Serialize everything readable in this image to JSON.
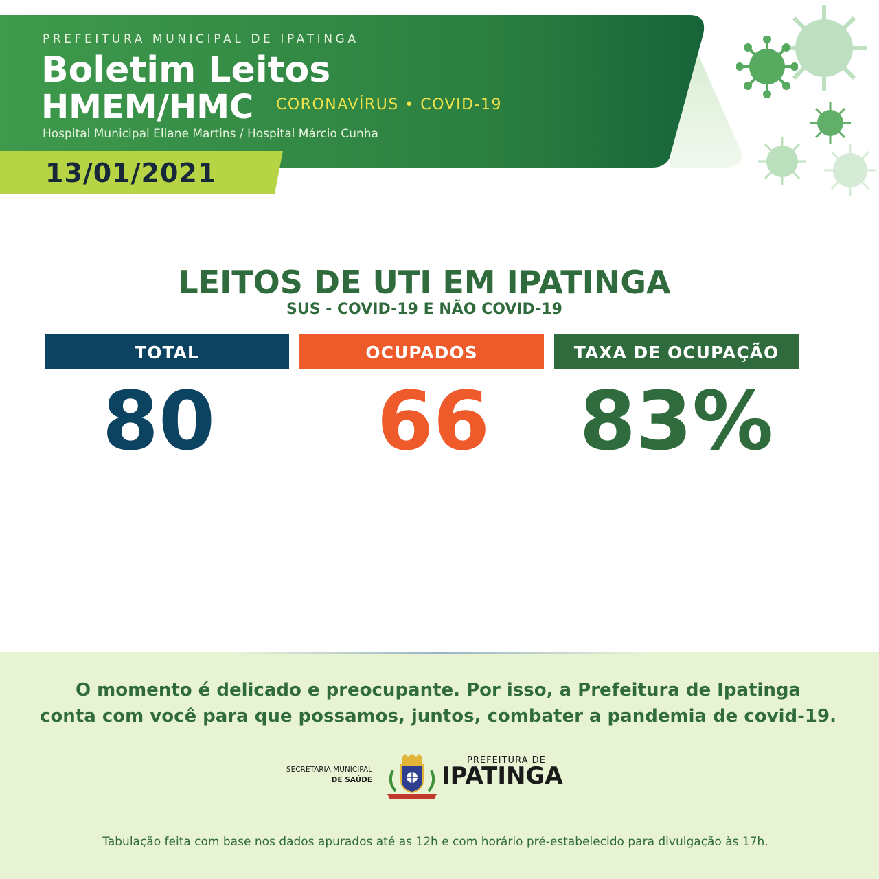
{
  "header": {
    "agency": "PREFEITURA MUNICIPAL DE IPATINGA",
    "title_line1": "Boletim Leitos",
    "title_line2": "HMEM/HMC",
    "tag": "CORONAVÍRUS • COVID-19",
    "hospitals": "Hospital Municipal Eliane Martins / Hospital Márcio Cunha",
    "date": "13/01/2021"
  },
  "section": {
    "title": "LEITOS DE UTI EM IPATINGA",
    "subtitle": "SUS  - COVID-19 E NÃO COVID-19"
  },
  "stats": [
    {
      "label": "TOTAL",
      "value": "80",
      "color": "#0c4360"
    },
    {
      "label": "OCUPADOS",
      "value": "66",
      "color": "#ef5a2a"
    },
    {
      "label": "TAXA DE OCUPAÇÃO",
      "value": "83%",
      "color": "#2f6b3c"
    }
  ],
  "footer": {
    "message_line1": "O momento é delicado e preocupante. Por isso, a Prefeitura de Ipatinga",
    "message_line2": "conta com você para que possamos, juntos, combater a pandemia de covid-19.",
    "secretaria_line1": "SECRETARIA MUNICIPAL",
    "secretaria_line2": "DE SAÚDE",
    "prefeitura_small": "PREFEITURA DE",
    "prefeitura_big": "IPATINGA",
    "note": "Tabulação feita com base nos dados apurados até as 12h e com horário pré-estabelecido para divulgação às 17h."
  },
  "colors": {
    "banner_dark": "#1f6e3a",
    "banner_light": "#3f9a4c",
    "date_bar": "#b7d444",
    "title_green": "#2f6b3c",
    "footer_bg": "#e8f3d4"
  },
  "icons": [
    "coronavirus-icon",
    "city-crest-icon"
  ]
}
